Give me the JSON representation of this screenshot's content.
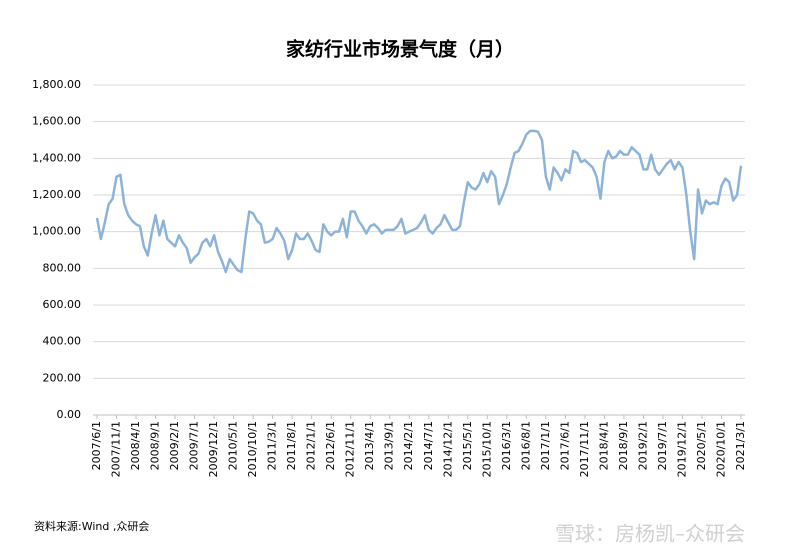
{
  "chart_data": {
    "type": "line",
    "title": "家纺行业市场景气度（月）",
    "source": "资料来源:Wind ,众研会",
    "watermark": "雪球：房杨凯–众研会",
    "categories": [
      "2007/6/1",
      null,
      null,
      null,
      null,
      "2007/11/1",
      null,
      null,
      null,
      null,
      "2008/4/1",
      null,
      null,
      null,
      null,
      "2008/9/1",
      null,
      null,
      null,
      null,
      "2009/2/1",
      null,
      null,
      null,
      null,
      "2009/7/1",
      null,
      null,
      null,
      null,
      "2009/12/1",
      null,
      null,
      null,
      null,
      "2010/5/1",
      null,
      null,
      null,
      null,
      "2010/10/1",
      null,
      null,
      null,
      null,
      "2011/3/1",
      null,
      null,
      null,
      null,
      "2011/8/1",
      null,
      null,
      null,
      null,
      "2012/1/1",
      null,
      null,
      null,
      null,
      "2012/6/1",
      null,
      null,
      null,
      null,
      "2012/11/1",
      null,
      null,
      null,
      null,
      "2013/4/1",
      null,
      null,
      null,
      null,
      "2013/9/1",
      null,
      null,
      null,
      null,
      "2014/2/1",
      null,
      null,
      null,
      null,
      "2014/7/1",
      null,
      null,
      null,
      null,
      "2014/12/1",
      null,
      null,
      null,
      null,
      "2015/5/1",
      null,
      null,
      null,
      null,
      "2015/10/1",
      null,
      null,
      null,
      null,
      "2016/3/1",
      null,
      null,
      null,
      null,
      "2016/8/1",
      null,
      null,
      null,
      null,
      "2017/1/1",
      null,
      null,
      null,
      null,
      "2017/6/1",
      null,
      null,
      null,
      null,
      "2017/11/1",
      null,
      null,
      null,
      null,
      "2018/4/1",
      null,
      null,
      null,
      null,
      "2018/9/1",
      null,
      null,
      null,
      null,
      "2019/2/1",
      null,
      null,
      null,
      null,
      "2019/7/1",
      null,
      null,
      null,
      null,
      "2019/12/1",
      null,
      null,
      null,
      null,
      "2020/5/1",
      null,
      null,
      null,
      null,
      "2020/10/1",
      null,
      null,
      null,
      null,
      "2021/3/1"
    ],
    "series": [
      {
        "name": "家纺行业市场景气度",
        "color": "#8db3d9",
        "values": [
          1075,
          960,
          1050,
          1150,
          1180,
          1300,
          1310,
          1150,
          1090,
          1060,
          1040,
          1030,
          920,
          870,
          990,
          1090,
          980,
          1060,
          960,
          940,
          920,
          980,
          940,
          910,
          830,
          860,
          880,
          940,
          960,
          920,
          980,
          890,
          840,
          780,
          850,
          820,
          790,
          780,
          960,
          1110,
          1100,
          1060,
          1040,
          940,
          945,
          960,
          1020,
          990,
          950,
          850,
          900,
          990,
          960,
          960,
          990,
          950,
          900,
          890,
          1040,
          1000,
          980,
          1000,
          1000,
          1070,
          970,
          1110,
          1110,
          1060,
          1030,
          990,
          1030,
          1040,
          1020,
          990,
          1010,
          1010,
          1010,
          1030,
          1070,
          990,
          1000,
          1010,
          1020,
          1050,
          1090,
          1010,
          990,
          1020,
          1040,
          1090,
          1050,
          1010,
          1010,
          1030,
          1160,
          1270,
          1240,
          1230,
          1260,
          1320,
          1270,
          1330,
          1300,
          1150,
          1200,
          1260,
          1350,
          1430,
          1440,
          1480,
          1530,
          1550,
          1550,
          1545,
          1500,
          1300,
          1230,
          1350,
          1320,
          1280,
          1340,
          1320,
          1440,
          1430,
          1380,
          1390,
          1370,
          1350,
          1300,
          1180,
          1380,
          1440,
          1400,
          1410,
          1440,
          1420,
          1420,
          1460,
          1440,
          1420,
          1340,
          1340,
          1420,
          1340,
          1310,
          1340,
          1370,
          1390,
          1340,
          1380,
          1350,
          1200,
          1000,
          850,
          1230,
          1100,
          1170,
          1150,
          1160,
          1150,
          1250,
          1290,
          1270,
          1170,
          1200,
          1360
        ]
      }
    ],
    "ylim": [
      0,
      1800
    ],
    "yticks": [
      {
        "value": 0,
        "label": "0.00"
      },
      {
        "value": 200,
        "label": "200.00"
      },
      {
        "value": 400,
        "label": "400.00"
      },
      {
        "value": 600,
        "label": "600.00"
      },
      {
        "value": 800,
        "label": "800.00"
      },
      {
        "value": 1000,
        "label": "1,000.00"
      },
      {
        "value": 1200,
        "label": "1,200.00"
      },
      {
        "value": 1400,
        "label": "1,400.00"
      },
      {
        "value": 1600,
        "label": "1,600.00"
      },
      {
        "value": 1800,
        "label": "1,800.00"
      }
    ],
    "grid": true
  }
}
